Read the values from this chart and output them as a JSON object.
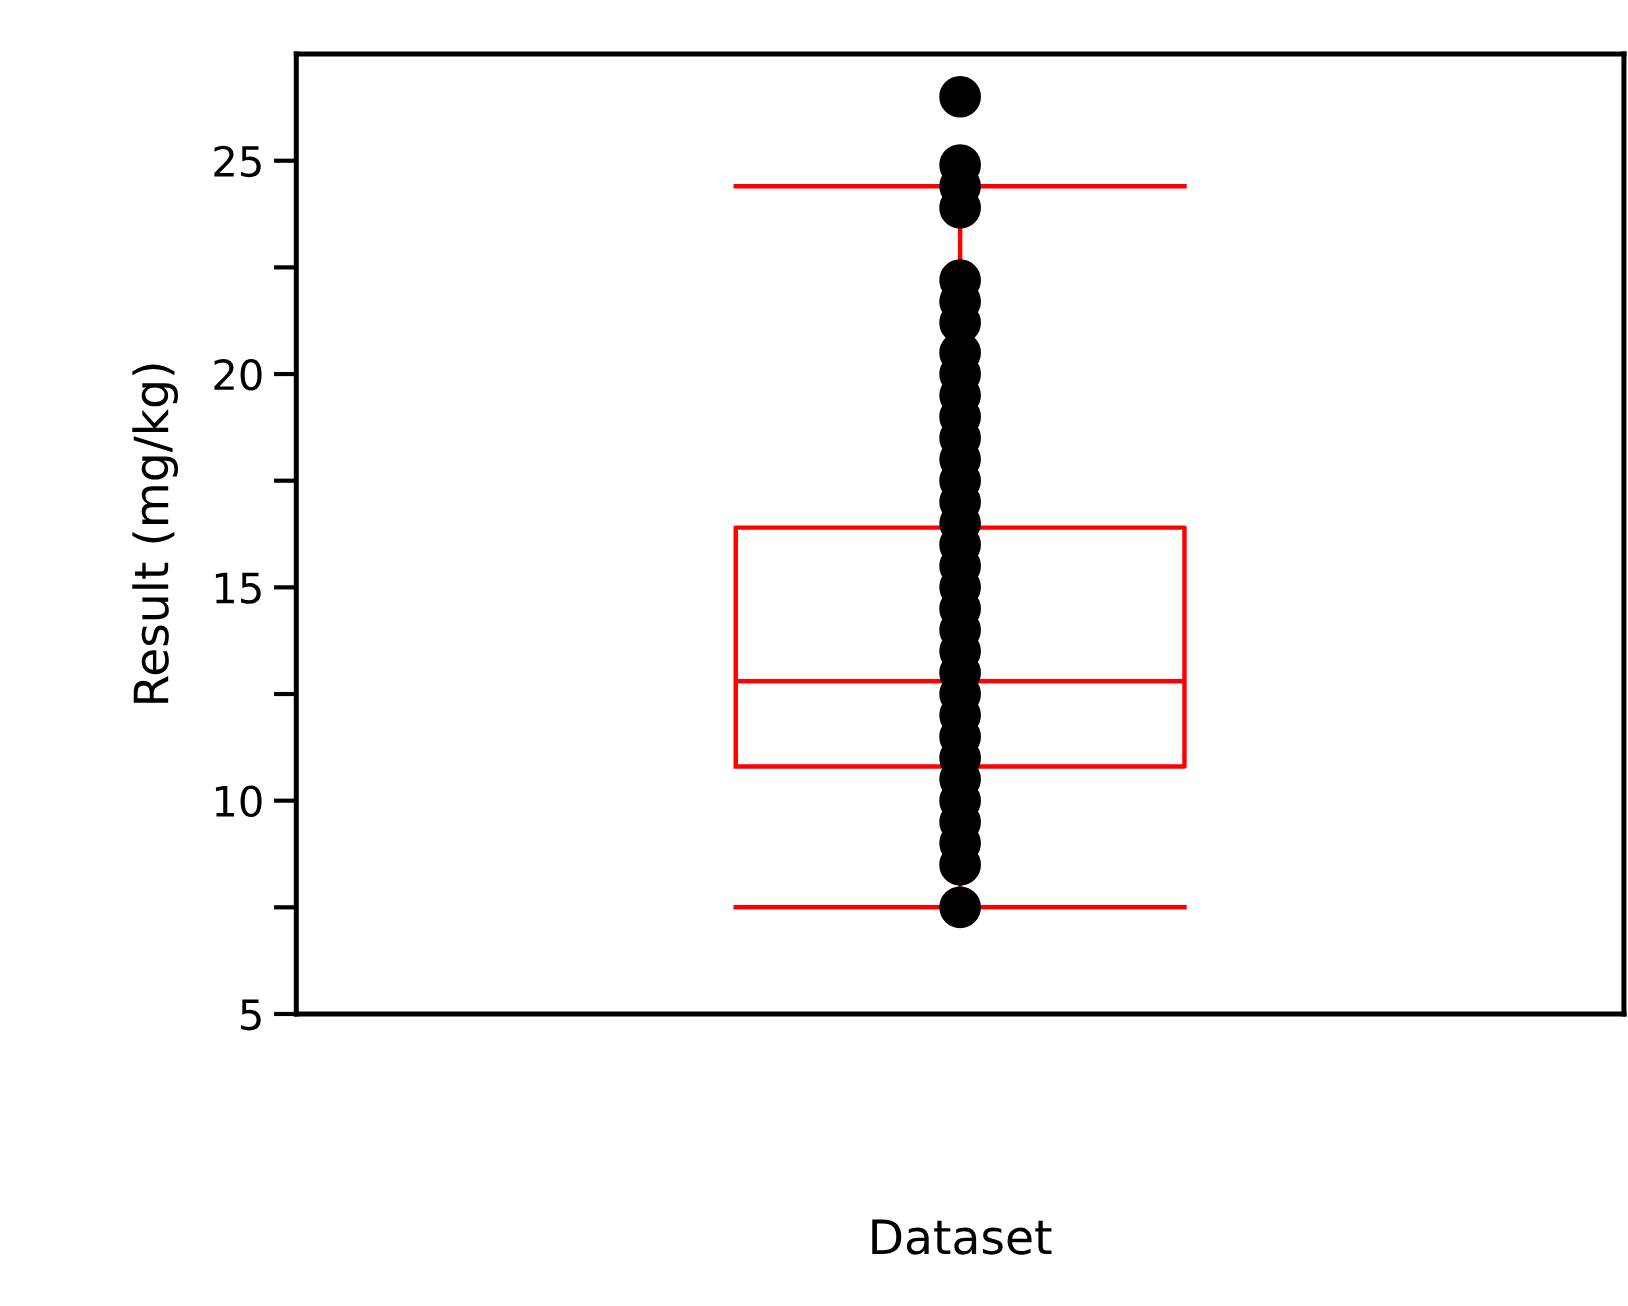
{
  "chart_data": {
    "type": "box",
    "ylabel": "Result (mg/kg)",
    "xlabel": "Dataset",
    "categories": [
      null
    ],
    "ylim": [
      5,
      27.5
    ],
    "yticks": [
      5,
      {
        "value": 7.5,
        "label": null
      },
      10,
      {
        "value": 12.5,
        "label": null
      },
      15,
      {
        "value": 17.5,
        "label": null
      },
      20,
      {
        "value": 22.5,
        "label": null
      },
      25
    ],
    "grid": false,
    "series": [
      {
        "color": "#ff0000",
        "boxes": [
          {
            "low": 7.5,
            "q1": 10.8,
            "median": 12.8,
            "q3": 16.4,
            "high": 24.4
          }
        ]
      },
      {
        "type": "scatter",
        "color": "#000000",
        "marker": "circle",
        "x": [
          null,
          null,
          null,
          null,
          null,
          null,
          null,
          null,
          null,
          null,
          null,
          null,
          null,
          null,
          null,
          null,
          null,
          null,
          null,
          null,
          null,
          null,
          null,
          null,
          null,
          null,
          null,
          null,
          null,
          null,
          null,
          null,
          null
        ],
        "values": [
          26.5,
          24.9,
          24.4,
          23.9,
          22.2,
          21.7,
          21.2,
          20.5,
          20.0,
          19.5,
          19.0,
          18.5,
          18.0,
          17.5,
          17.0,
          16.5,
          16.0,
          15.5,
          15.0,
          14.5,
          14.0,
          13.5,
          13.0,
          12.5,
          12.0,
          11.5,
          11.0,
          10.5,
          10.0,
          9.5,
          9.0,
          8.5,
          7.5
        ]
      }
    ]
  }
}
